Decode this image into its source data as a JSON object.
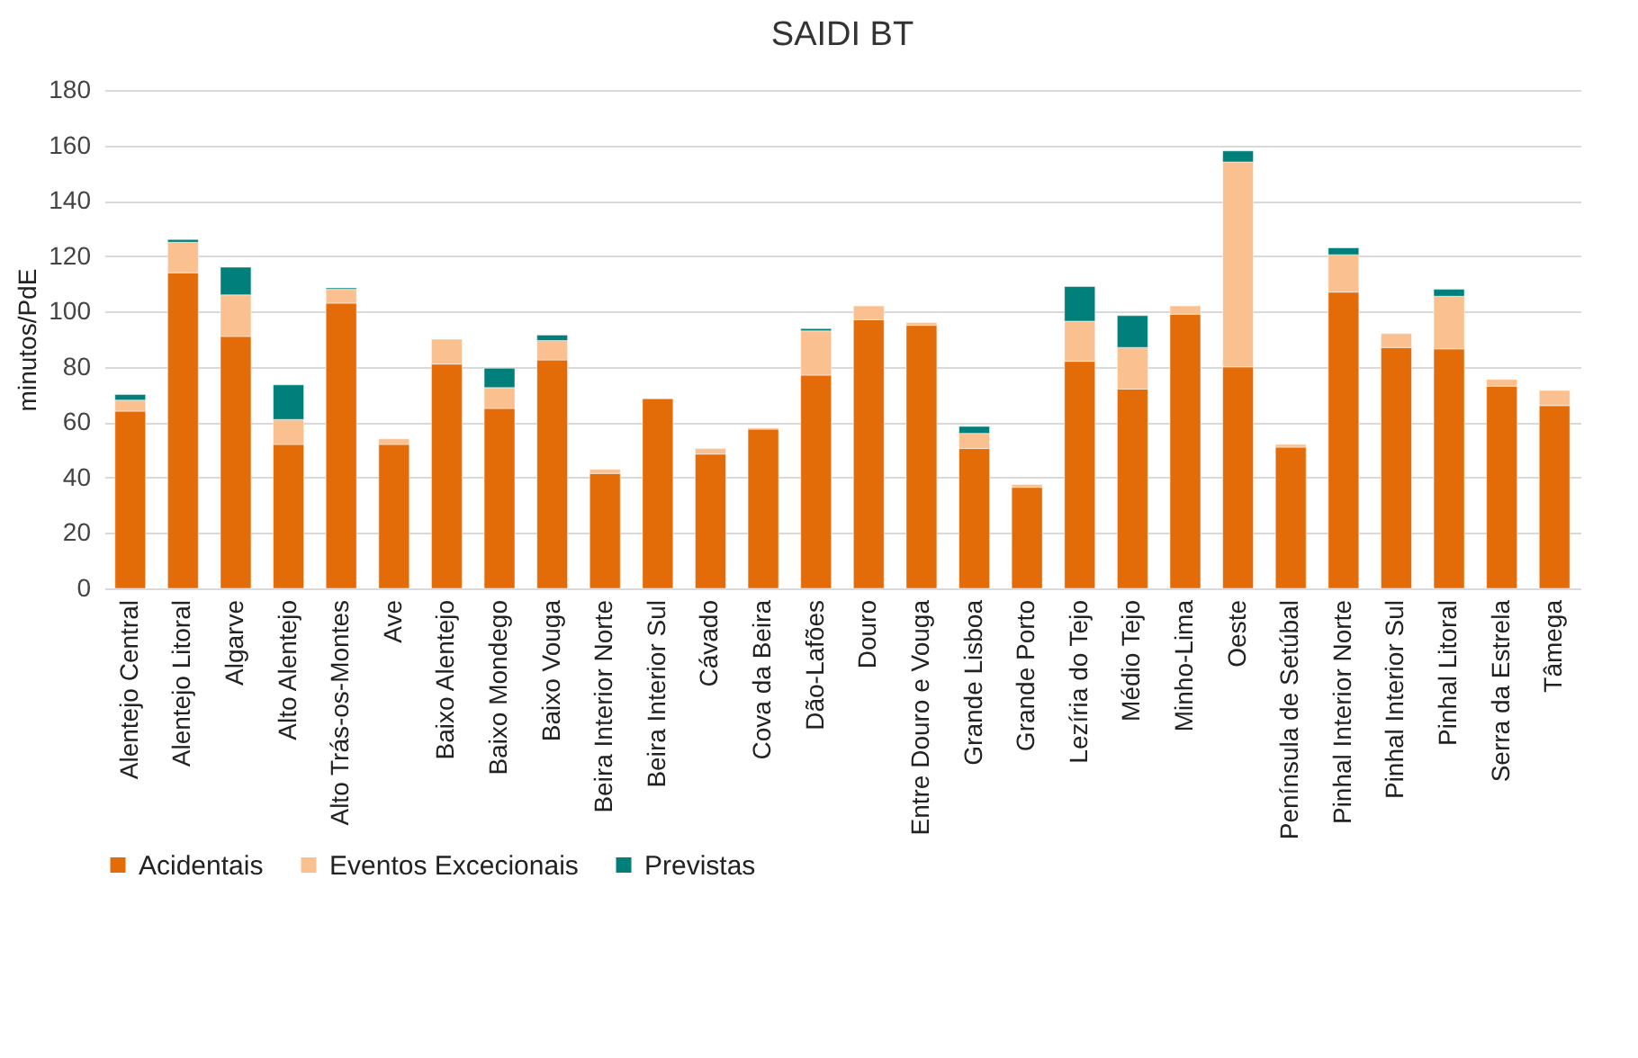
{
  "chart_data": {
    "type": "bar",
    "title": "SAIDI BT",
    "ylabel": "minutos/PdE",
    "stacked": true,
    "grid": "y",
    "legend": "bottom",
    "categories": [
      "Alentejo Central",
      "Alentejo Litoral",
      "Algarve",
      "Alto Alentejo",
      "Alto Trás-os-Montes",
      "Ave",
      "Baixo Alentejo",
      "Baixo Mondego",
      "Baixo Vouga",
      "Beira Interior Norte",
      "Beira Interior Sul",
      "Cávado",
      "Cova da Beira",
      "Dão-Lafões",
      "Douro",
      "Entre Douro e Vouga",
      "Grande Lisboa",
      "Grande Porto",
      "Lezíria do Tejo",
      "Médio Tejo",
      "Minho-Lima",
      "Oeste",
      "Península de Setúbal",
      "Pinhal Interior Norte",
      "Pinhal Interior Sul",
      "Pinhal Litoral",
      "Serra da Estrela",
      "Tâmega"
    ],
    "series": [
      {
        "name": "Acidentais",
        "color": "#e36c09",
        "values": [
          64,
          114,
          91,
          52,
          103,
          52,
          81,
          65,
          82.5,
          41.5,
          68.5,
          48.5,
          57.5,
          77,
          97,
          95,
          50.5,
          36.5,
          82,
          72,
          99,
          80,
          51,
          107,
          87,
          86.5,
          73,
          66
        ]
      },
      {
        "name": "Eventos Excecionais",
        "color": "#fac090",
        "values": [
          4,
          11,
          15,
          9,
          5,
          2,
          9,
          7.5,
          7,
          1.5,
          null,
          2,
          0.5,
          16,
          5,
          1,
          5.5,
          1,
          14.5,
          15,
          3,
          74,
          1,
          13.5,
          5,
          19,
          2.5,
          5.5
        ]
      },
      {
        "name": "Previstas",
        "color": "#007f7b",
        "values": [
          2,
          1,
          10,
          12.5,
          0.5,
          null,
          null,
          7,
          2,
          null,
          null,
          null,
          null,
          0.8,
          null,
          null,
          2.5,
          null,
          12.5,
          11.5,
          null,
          4,
          null,
          2.5,
          null,
          2.5,
          null,
          null
        ]
      }
    ],
    "ylim": [
      0,
      180
    ],
    "yticks": [
      0,
      20,
      40,
      60,
      80,
      100,
      120,
      140,
      160,
      180
    ]
  }
}
